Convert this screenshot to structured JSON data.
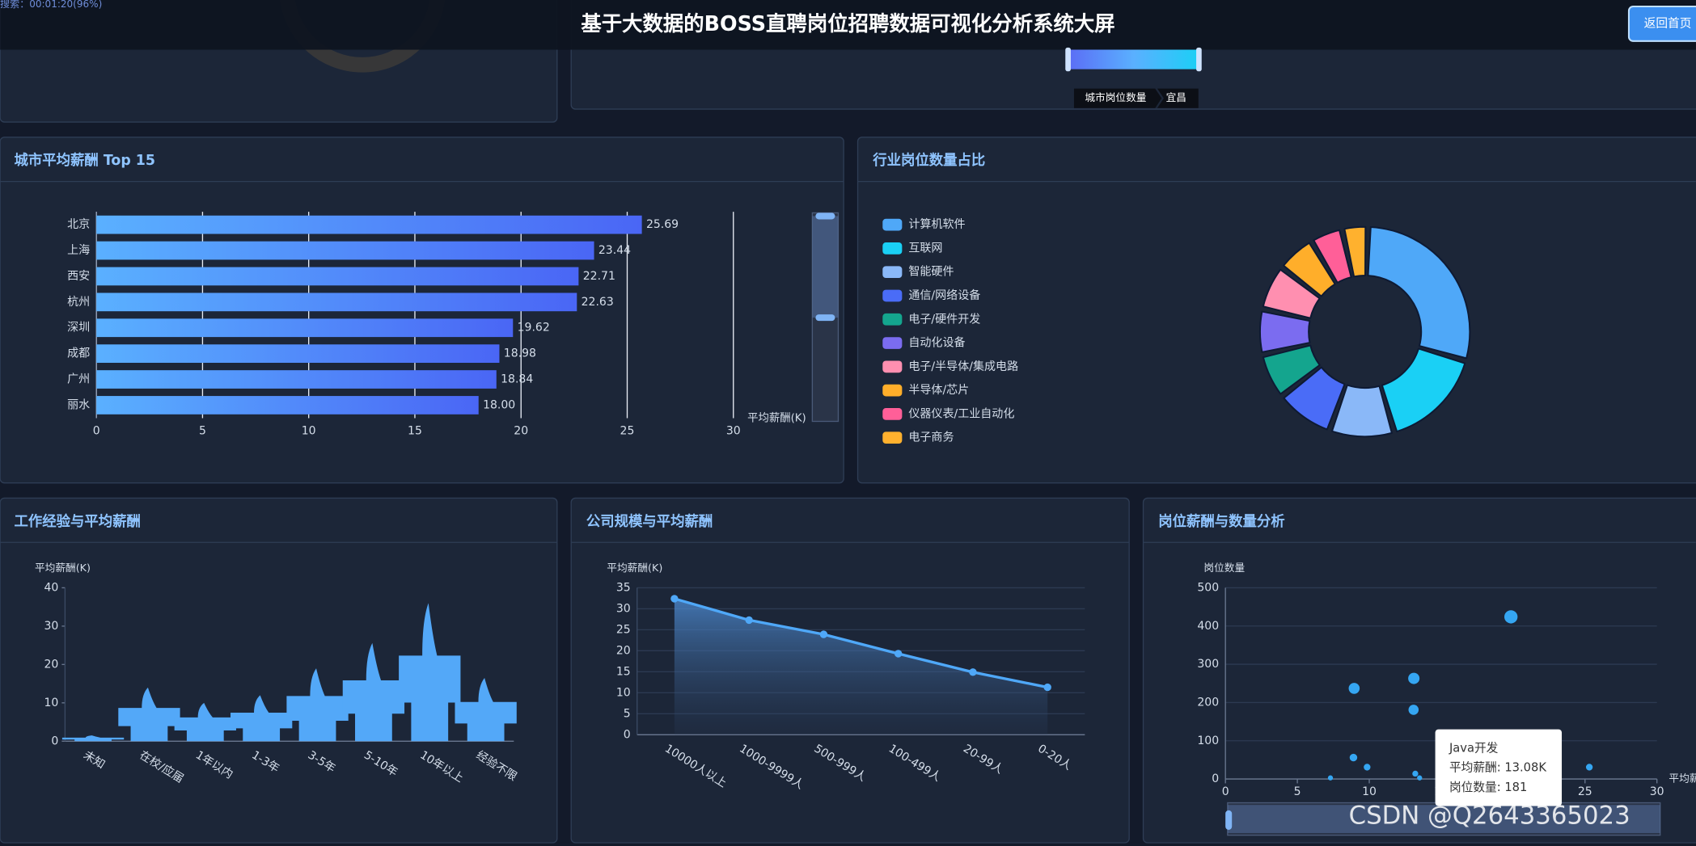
{
  "header": {
    "status": "搜索：00:01:20(96%)",
    "title": "基于大数据的BOSS直聘岗位招聘数据可视化分析系统大屏",
    "button": "返回首页"
  },
  "map": {
    "visual_map_label": "城市岗位数量",
    "breadcrumb": "宜昌"
  },
  "watermark": "CSDN @Q2643365023",
  "chart_data": [
    {
      "type": "bar",
      "title": "城市平均薪酬 Top 15",
      "orientation": "horizontal",
      "categories": [
        "北京",
        "上海",
        "西安",
        "杭州",
        "深圳",
        "成都",
        "广州",
        "丽水"
      ],
      "values": [
        25.69,
        23.44,
        22.71,
        22.63,
        19.62,
        18.98,
        18.84,
        18.0
      ],
      "value_labels": [
        "25.69",
        "23.44",
        "22.71",
        "22.63",
        "19.62",
        "18.98",
        "18.84",
        "18.00"
      ],
      "xlim": [
        0,
        30
      ],
      "xticks": [
        0,
        5,
        10,
        15,
        20,
        25,
        30
      ],
      "x_label": "平均薪酬(K)",
      "color": "#4a6cf7",
      "grid": true
    },
    {
      "type": "pie",
      "title": "行业岗位数量占比",
      "donut": true,
      "legend": "left",
      "categories": [
        "计算机软件",
        "互联网",
        "智能硬件",
        "通信/网络设备",
        "电子/硬件开发",
        "自动化设备",
        "电子/半导体/集成电路",
        "半导体/芯片",
        "仪器仪表/工业自动化",
        "电子商务"
      ],
      "values": [
        29,
        16,
        10,
        9,
        7,
        7,
        7,
        6,
        5,
        4
      ],
      "colors": [
        "#4fa8f8",
        "#1ad0f5",
        "#8ab8f8",
        "#4a6cf7",
        "#14a58e",
        "#7b6cf0",
        "#ff8fb0",
        "#ffae2a",
        "#ff5f98",
        "#ffb12e"
      ]
    },
    {
      "type": "pictorial",
      "title": "工作经验与平均薪酬",
      "categories": [
        "未知",
        "在校/应届",
        "1年以内",
        "1-3年",
        "3-5年",
        "5-10年",
        "10年以上",
        "经验不限"
      ],
      "values": [
        1.5,
        14,
        10,
        12,
        19,
        25.6,
        36,
        16.5
      ],
      "ylim": [
        0,
        40
      ],
      "yticks": [
        0,
        10,
        20,
        30,
        40
      ],
      "y_label": "平均薪酬(K)",
      "color": "#53a8f8",
      "grid": false
    },
    {
      "type": "line",
      "title": "公司规模与平均薪酬",
      "area": true,
      "categories": [
        "10000人以上",
        "1000-9999人",
        "500-999人",
        "100-499人",
        "20-99人",
        "0-20人"
      ],
      "values": [
        32.4,
        27.3,
        23.9,
        19.3,
        14.9,
        11.3
      ],
      "ylim": [
        0,
        35
      ],
      "yticks": [
        0,
        5,
        10,
        15,
        20,
        25,
        30,
        35
      ],
      "y_label": "平均薪酬(K)",
      "color": "#4fa8f8",
      "grid": true
    },
    {
      "type": "scatter",
      "title": "岗位薪酬与数量分析",
      "x": [
        19.85,
        8.95,
        13.1,
        13.08,
        8.9,
        9.85,
        13.2,
        13.5,
        7.3,
        25.3
      ],
      "values": [
        424,
        237,
        263,
        181,
        56,
        31,
        14,
        3,
        3,
        31
      ],
      "xlim": [
        0,
        30
      ],
      "xticks": [
        0,
        5,
        10,
        15,
        20,
        25,
        30
      ],
      "ylim": [
        0,
        500
      ],
      "yticks": [
        0,
        100,
        200,
        300,
        400,
        500
      ],
      "y_label": "岗位数量",
      "x_label": "平均薪",
      "color": "#35a6f2",
      "grid": true,
      "tooltip": {
        "title": "Java开发",
        "lines": [
          "平均薪酬: 13.08K",
          "岗位数量: 181"
        ]
      }
    }
  ]
}
